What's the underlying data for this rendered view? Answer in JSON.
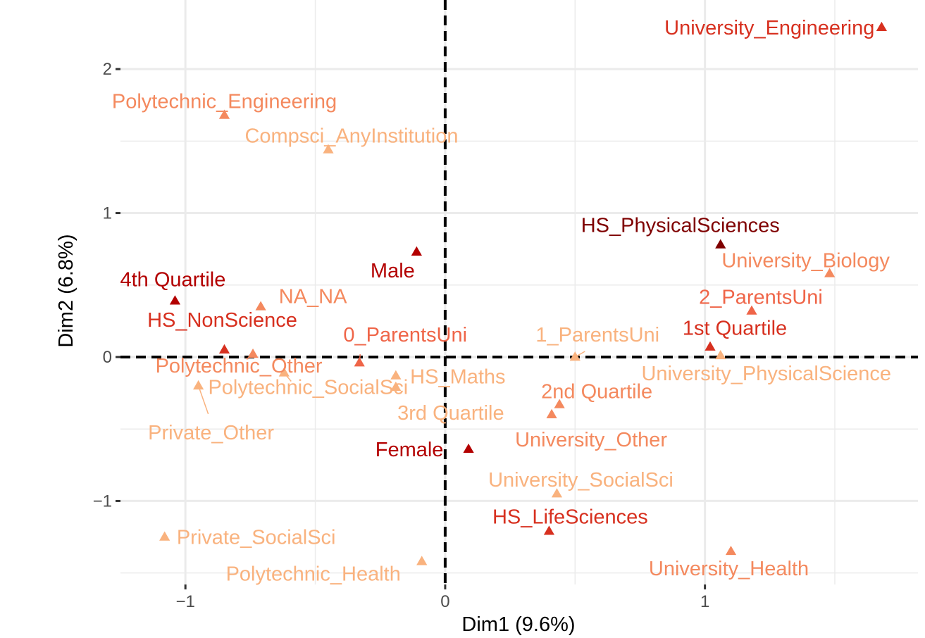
{
  "chart_data": {
    "type": "scatter",
    "title": "",
    "xlabel": "Dim1 (9.6%)",
    "ylabel": "Dim2 (6.8%)",
    "xlim": [
      -1.25,
      1.82
    ],
    "ylim": [
      -1.58,
      2.48
    ],
    "x_ticks": [
      -1,
      0,
      1
    ],
    "x_tick_labels": [
      "−1",
      "0",
      "1"
    ],
    "y_ticks": [
      -1,
      0,
      1,
      2
    ],
    "y_tick_labels": [
      "−1",
      "0",
      "1",
      "2"
    ],
    "grid": true,
    "reference_lines": [
      {
        "axis": "x",
        "value": 0,
        "style": "dashed"
      },
      {
        "axis": "y",
        "value": 0,
        "style": "dashed"
      }
    ],
    "marker": "triangle",
    "points": [
      {
        "label": "University_Engineering",
        "x": 1.68,
        "y": 2.29,
        "color": "#d7301f"
      },
      {
        "label": "Polytechnic_Engineering",
        "x": -0.85,
        "y": 1.68,
        "color": "#f4895e"
      },
      {
        "label": "Compsci_AnyInstitution",
        "x": -0.45,
        "y": 1.44,
        "color": "#f9b27e"
      },
      {
        "label": "HS_PhysicalSciences",
        "x": 1.06,
        "y": 0.78,
        "color": "#7f0000"
      },
      {
        "label": "University_Biology",
        "x": 1.48,
        "y": 0.58,
        "color": "#f4895e"
      },
      {
        "label": "Male",
        "x": -0.11,
        "y": 0.73,
        "color": "#b30000"
      },
      {
        "label": "4th Quartile",
        "x": -1.04,
        "y": 0.39,
        "color": "#b30000"
      },
      {
        "label": "NA_NA",
        "x": -0.71,
        "y": 0.35,
        "color": "#f4895e"
      },
      {
        "label": "2_ParentsUni",
        "x": 1.18,
        "y": 0.32,
        "color": "#ef6548"
      },
      {
        "label": "HS_NonScience",
        "x": -0.85,
        "y": 0.05,
        "color": "#d7301f"
      },
      {
        "label": "0_ParentsUni",
        "x": -0.33,
        "y": -0.04,
        "color": "#ef6548"
      },
      {
        "label": "1_ParentsUni",
        "x": 0.5,
        "y": 0.0,
        "color": "#f9b27e"
      },
      {
        "label": "1st Quartile",
        "x": 1.02,
        "y": 0.07,
        "color": "#d7301f"
      },
      {
        "label": "University_PhysicalScience",
        "x": 1.06,
        "y": 0.01,
        "color": "#f9b27e"
      },
      {
        "label": "Polytechnic_Other",
        "x": -0.74,
        "y": 0.02,
        "color": "#f4895e"
      },
      {
        "label": "Polytechnic_SocialSci",
        "x": -0.62,
        "y": -0.11,
        "color": "#f9b27e"
      },
      {
        "label": "HS_Maths",
        "x": -0.19,
        "y": -0.13,
        "color": "#f9b27e"
      },
      {
        "label": "3rd Quartile",
        "x": -0.19,
        "y": -0.21,
        "color": "#f9b27e"
      },
      {
        "label": "Private_Other",
        "x": -0.95,
        "y": -0.2,
        "color": "#f9b27e"
      },
      {
        "label": "2nd Quartile",
        "x": 0.44,
        "y": -0.33,
        "color": "#f4895e"
      },
      {
        "label": "University_Other",
        "x": 0.41,
        "y": -0.4,
        "color": "#f4895e"
      },
      {
        "label": "Female",
        "x": 0.09,
        "y": -0.64,
        "color": "#b30000"
      },
      {
        "label": "University_SocialSci",
        "x": 0.43,
        "y": -0.95,
        "color": "#f9b27e"
      },
      {
        "label": "HS_LifeSciences",
        "x": 0.4,
        "y": -1.21,
        "color": "#d7301f"
      },
      {
        "label": "Private_SocialSci",
        "x": -1.08,
        "y": -1.25,
        "color": "#f9b27e"
      },
      {
        "label": "Polytechnic_Health",
        "x": -0.09,
        "y": -1.42,
        "color": "#f9b27e"
      },
      {
        "label": "University_Health",
        "x": 1.1,
        "y": -1.35,
        "color": "#f4895e"
      }
    ]
  }
}
